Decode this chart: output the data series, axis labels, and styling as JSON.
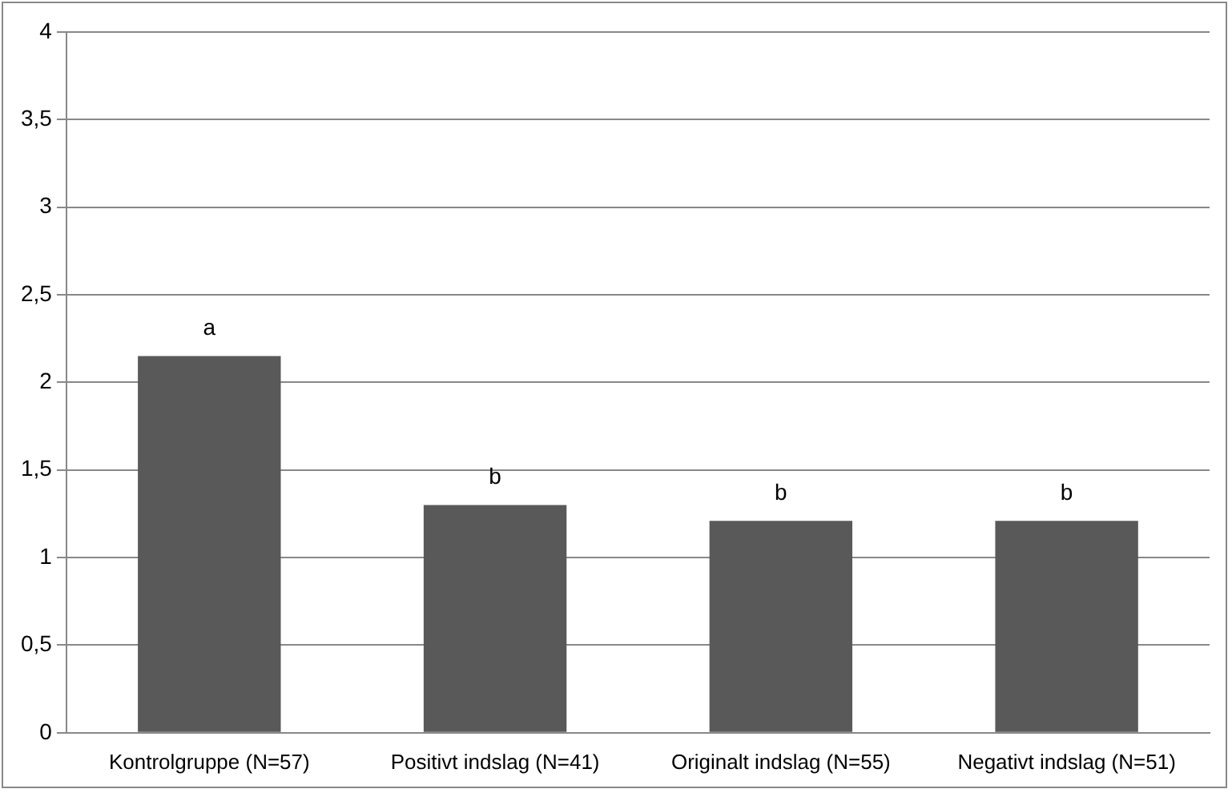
{
  "chart_data": {
    "type": "bar",
    "categories": [
      "Kontrolgruppe (N=57)",
      "Positivt indslag (N=41)",
      "Originalt indslag (N=55)",
      "Negativt indslag (N=51)"
    ],
    "values": [
      2.15,
      1.3,
      1.21,
      1.21
    ],
    "color": "#595959",
    "ylim": [
      0,
      4
    ],
    "yticks": [
      0,
      {
        "value": 0.5,
        "label": "0,5"
      },
      1,
      {
        "value": 1.5,
        "label": "1,5"
      },
      2,
      {
        "value": 2.5,
        "label": "2,5"
      },
      3,
      {
        "value": 3.5,
        "label": "3,5"
      },
      4
    ],
    "grid": "y",
    "legend": false,
    "annotations": [
      {
        "text": "a",
        "x": "Kontrolgruppe (N=57)",
        "y": 2.15
      },
      {
        "text": "b",
        "x": "Positivt indslag (N=41)",
        "y": 1.3
      },
      {
        "text": "b",
        "x": "Originalt indslag (N=55)",
        "y": 1.21
      },
      {
        "text": "b",
        "x": "Negativt indslag (N=51)",
        "y": 1.21
      }
    ]
  }
}
